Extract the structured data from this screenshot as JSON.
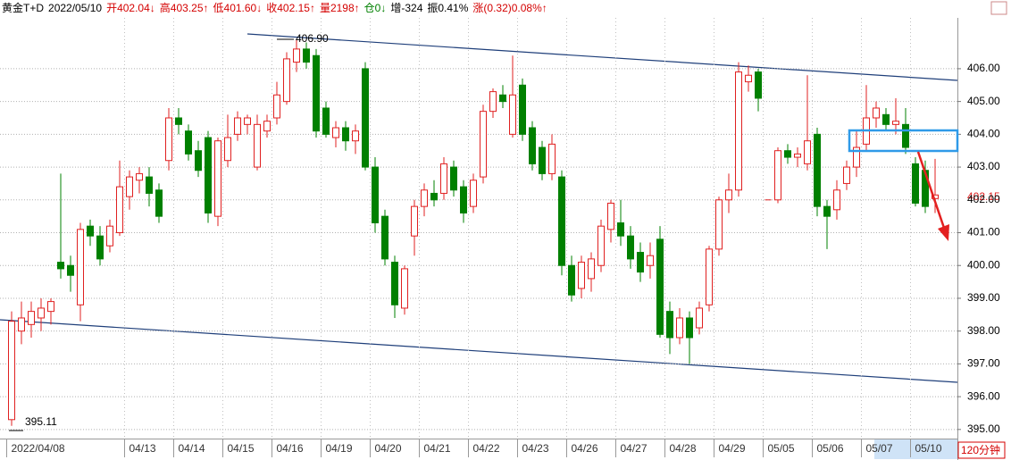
{
  "chart_data": {
    "type": "candlestick",
    "header": [
      "黄金T+D",
      "2022/05/10",
      "开402.04↓",
      "高403.25↑",
      "低401.60↓",
      "收402.15↑",
      "量2198↑",
      "仓0↓",
      "增-324",
      "振0.41%",
      "涨(0.32)0.08%↑"
    ],
    "header_colors": [
      "#000000",
      "#000000",
      "#d40000",
      "#d40000",
      "#d40000",
      "#d40000",
      "#d40000",
      "#008000",
      "#000000",
      "#000000",
      "#d40000"
    ],
    "period": "120分钟",
    "high_label": "406.90",
    "low_label": "395.11",
    "last_label": "402.15",
    "up_color": "#e02020",
    "down_color": "#008000",
    "categories": [
      "2022/04/08",
      null,
      null,
      null,
      null,
      null,
      null,
      null,
      null,
      null,
      null,
      null,
      "04/13",
      null,
      null,
      null,
      null,
      "04/14",
      null,
      null,
      null,
      null,
      "04/15",
      null,
      null,
      null,
      null,
      "04/16",
      null,
      null,
      null,
      null,
      "04/19",
      null,
      null,
      null,
      null,
      "04/20",
      null,
      null,
      null,
      null,
      "04/21",
      null,
      null,
      null,
      null,
      "04/22",
      null,
      null,
      null,
      null,
      "04/23",
      null,
      null,
      null,
      null,
      "04/26",
      null,
      null,
      null,
      null,
      "04/27",
      null,
      null,
      null,
      null,
      "04/28",
      null,
      null,
      null,
      null,
      "04/29",
      null,
      null,
      null,
      null,
      "05/05",
      null,
      null,
      null,
      null,
      "05/06",
      null,
      null,
      null,
      null,
      "05/07",
      null,
      null,
      null,
      null,
      "05/10",
      null,
      null
    ],
    "open": [
      395.3,
      398.0,
      398.2,
      398.4,
      398.6,
      400.1,
      400.0,
      398.8,
      401.2,
      400.9,
      400.6,
      401.0,
      402.1,
      402.6,
      402.7,
      402.3,
      403.2,
      404.5,
      404.1,
      403.5,
      403.9,
      401.5,
      403.2,
      404.0,
      404.3,
      403.0,
      404.1,
      404.5,
      405.0,
      406.2,
      406.6,
      406.4,
      404.8,
      403.9,
      404.2,
      403.8,
      406.0,
      403.0,
      401.5,
      400.1,
      398.7,
      400.9,
      401.8,
      402.2,
      402.2,
      403.0,
      402.4,
      401.8,
      402.7,
      404.7,
      405.2,
      404.0,
      405.5,
      404.2,
      403.6,
      402.8,
      402.7,
      400.0,
      399.3,
      399.6,
      400.0,
      401.1,
      401.3,
      400.9,
      400.4,
      400.0,
      400.8,
      398.6,
      397.8,
      398.4,
      398.1,
      398.8,
      400.5,
      402.0,
      402.3,
      405.6,
      405.9,
      402.0,
      402.0,
      403.5,
      403.3,
      403.1,
      404.0,
      401.8,
      401.7,
      402.5,
      403.0,
      403.7,
      404.5,
      404.6,
      404.3,
      404.3,
      403.1,
      402.9,
      402.04
    ],
    "high": [
      398.6,
      398.9,
      398.9,
      399.0,
      399.0,
      402.8,
      400.3,
      401.3,
      401.4,
      401.2,
      401.4,
      403.2,
      402.9,
      403.0,
      403.0,
      402.5,
      404.8,
      404.8,
      404.3,
      403.8,
      404.1,
      403.9,
      404.6,
      404.7,
      404.6,
      404.6,
      404.6,
      405.6,
      406.5,
      406.9,
      406.8,
      406.6,
      405.0,
      404.4,
      404.4,
      404.3,
      406.2,
      403.3,
      401.7,
      400.3,
      400.0,
      402.0,
      402.5,
      402.6,
      403.3,
      403.2,
      402.6,
      402.8,
      404.9,
      405.4,
      405.5,
      406.4,
      405.7,
      404.4,
      403.8,
      404.0,
      402.9,
      400.3,
      400.3,
      400.4,
      401.4,
      402.0,
      402.0,
      401.2,
      400.7,
      400.7,
      401.2,
      398.9,
      398.7,
      398.6,
      398.9,
      400.6,
      402.1,
      402.8,
      406.2,
      406.1,
      406.0,
      402.0,
      403.6,
      403.7,
      403.6,
      405.8,
      404.2,
      402.0,
      402.6,
      403.2,
      404.1,
      405.5,
      405.0,
      404.8,
      405.1,
      404.8,
      403.3,
      403.2,
      403.25
    ],
    "low": [
      395.11,
      397.6,
      397.8,
      398.0,
      398.2,
      399.6,
      399.2,
      398.3,
      400.6,
      400.0,
      400.4,
      400.9,
      401.7,
      402.2,
      401.8,
      401.3,
      402.9,
      404.0,
      403.2,
      402.7,
      401.3,
      401.2,
      403.0,
      403.8,
      404.0,
      402.9,
      403.9,
      404.3,
      404.9,
      405.9,
      406.0,
      403.9,
      403.9,
      403.6,
      403.5,
      403.4,
      402.9,
      401.0,
      400.0,
      398.4,
      398.5,
      400.3,
      401.5,
      401.8,
      402.0,
      402.1,
      401.3,
      401.6,
      402.5,
      404.5,
      404.8,
      403.9,
      403.8,
      402.9,
      402.6,
      402.6,
      399.7,
      398.9,
      399.0,
      399.2,
      399.8,
      400.7,
      400.6,
      399.9,
      399.5,
      399.6,
      397.8,
      397.3,
      397.6,
      397.0,
      397.9,
      398.6,
      400.3,
      401.6,
      402.1,
      405.3,
      404.7,
      402.0,
      401.9,
      403.1,
      403.0,
      402.9,
      401.5,
      400.5,
      401.4,
      402.3,
      402.7,
      403.5,
      404.2,
      404.1,
      404.0,
      403.4,
      401.8,
      401.6,
      401.6
    ],
    "close": [
      398.3,
      398.4,
      398.6,
      398.7,
      398.9,
      399.9,
      399.7,
      401.1,
      400.9,
      400.2,
      401.2,
      402.4,
      402.7,
      402.8,
      402.2,
      401.5,
      404.5,
      404.3,
      403.4,
      402.9,
      401.6,
      403.8,
      403.9,
      404.5,
      404.5,
      404.3,
      404.4,
      405.2,
      406.3,
      406.6,
      406.2,
      404.1,
      404.0,
      404.2,
      403.8,
      404.1,
      403.0,
      401.3,
      400.2,
      398.8,
      399.9,
      401.8,
      402.3,
      402.0,
      403.1,
      402.3,
      401.6,
      402.6,
      404.7,
      405.3,
      405.0,
      405.2,
      404.0,
      403.1,
      402.8,
      403.7,
      400.0,
      399.1,
      400.1,
      400.2,
      401.2,
      401.9,
      400.9,
      400.2,
      399.8,
      400.3,
      397.9,
      397.8,
      398.4,
      397.8,
      398.7,
      400.5,
      402.0,
      402.3,
      405.9,
      405.8,
      405.1,
      402.0,
      403.5,
      403.3,
      403.4,
      403.8,
      401.8,
      401.5,
      402.3,
      403.0,
      403.6,
      404.5,
      404.8,
      404.3,
      404.4,
      403.6,
      401.9,
      401.8,
      402.15
    ],
    "ylim": [
      394.75,
      407.55
    ],
    "yticks": [
      {
        "value": 395,
        "label": "395.00"
      },
      {
        "value": 396,
        "label": "396.00"
      },
      {
        "value": 397,
        "label": "397.00"
      },
      {
        "value": 398,
        "label": "398.00"
      },
      {
        "value": 399,
        "label": "399.00"
      },
      {
        "value": 400,
        "label": "400.00"
      },
      {
        "value": 401,
        "label": "401.00"
      },
      {
        "value": 402,
        "label": "402.00"
      },
      {
        "value": 403,
        "label": "403.00"
      },
      {
        "value": 404,
        "label": "404.00"
      },
      {
        "value": 405,
        "label": "405.00"
      },
      {
        "value": 406,
        "label": "406.00"
      }
    ],
    "grid": true
  }
}
